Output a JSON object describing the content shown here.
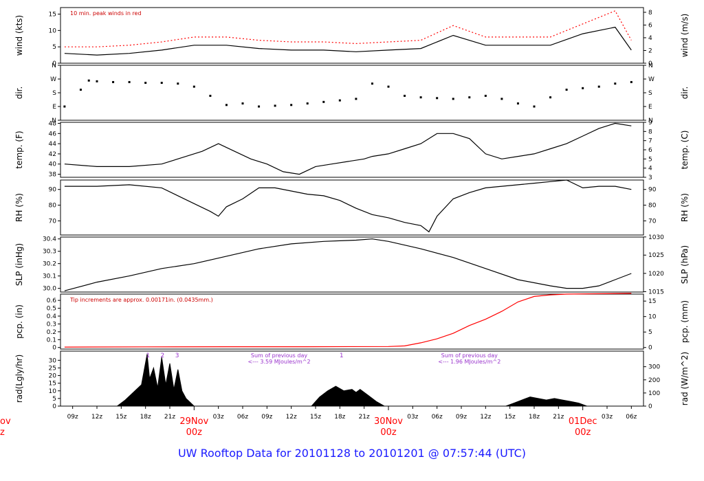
{
  "footer_title": "UW Rooftop Data for 20101128  to  20101201 @ 07:57:44  (UTC)",
  "colors": {
    "axis": "#000000",
    "series": "#000000",
    "peak": "#ff0000",
    "precip": "#ff0000",
    "note_red": "#cc0000",
    "note_purple": "#9933cc",
    "day_label": "#ff0000",
    "footer": "#1a1aff"
  },
  "chart_data": [
    {
      "type": "line",
      "id": "wind",
      "ylabel_left": "wind (kts)",
      "ylabel_right": "wind (m/s)",
      "ylim": [
        0,
        17
      ],
      "yticks_left": [
        0,
        5,
        10,
        15
      ],
      "yticks_right": [
        "0",
        "2",
        "4",
        "6",
        "8"
      ],
      "yticks_right_kts": [
        0,
        3.89,
        7.78,
        11.66,
        15.55
      ],
      "annotation": "10 min. peak winds in red",
      "series": [
        {
          "x": [
            0,
            4,
            8,
            12,
            16,
            20,
            24,
            28,
            32,
            36,
            40,
            44,
            48,
            52,
            56,
            60,
            64,
            68,
            70
          ],
          "values": [
            3,
            2.5,
            3,
            4,
            5.5,
            5.5,
            4.5,
            4,
            4,
            3.5,
            4,
            4.5,
            8.5,
            5.5,
            5.5,
            5.5,
            9,
            11,
            4
          ]
        },
        {
          "name": "10 min. peak winds",
          "x": [
            0,
            4,
            8,
            12,
            16,
            20,
            24,
            28,
            32,
            36,
            40,
            44,
            48,
            52,
            56,
            60,
            64,
            68,
            70
          ],
          "values": [
            5,
            5,
            5.5,
            6.5,
            8,
            8,
            7,
            6.5,
            6.5,
            6,
            6.5,
            7,
            11.5,
            8,
            8,
            8,
            12,
            16,
            7
          ]
        }
      ]
    },
    {
      "type": "scatter",
      "id": "dir",
      "ylabel_left": "dir.",
      "ylabel_right": "dir.",
      "ylim": [
        0,
        360
      ],
      "yticks": [
        "N",
        "E",
        "S",
        "W",
        "N"
      ],
      "ytick_values": [
        0,
        90,
        180,
        270,
        360
      ],
      "x": [
        0,
        2,
        3,
        4,
        6,
        8,
        10,
        12,
        14,
        16,
        18,
        20,
        22,
        24,
        26,
        28,
        30,
        32,
        34,
        36,
        38,
        40,
        42,
        44,
        46,
        48,
        50,
        52,
        54,
        56,
        58,
        60,
        62,
        64,
        66,
        68,
        70
      ],
      "values": [
        90,
        200,
        260,
        255,
        250,
        250,
        245,
        245,
        240,
        220,
        160,
        100,
        110,
        90,
        95,
        100,
        110,
        120,
        130,
        140,
        240,
        220,
        160,
        150,
        145,
        140,
        150,
        160,
        140,
        110,
        90,
        150,
        200,
        210,
        220,
        240,
        250
      ]
    },
    {
      "type": "line",
      "id": "temp",
      "ylabel_left": "temp. (F)",
      "ylabel_right": "temp. (C)",
      "ylim": [
        37.4,
        48.2
      ],
      "yticks_left": [
        38,
        40,
        42,
        44,
        46,
        48
      ],
      "yticks_right": [
        "3",
        "4",
        "5",
        "6",
        "7",
        "8",
        "9"
      ],
      "yticks_right_F": [
        37.4,
        39.2,
        41,
        42.8,
        44.6,
        46.4,
        48.2
      ],
      "series": [
        {
          "x": [
            0,
            4,
            8,
            12,
            15,
            17,
            19,
            21,
            23,
            25,
            27,
            29,
            31,
            33,
            35,
            37,
            38,
            40,
            42,
            44,
            46,
            48,
            50,
            52,
            54,
            56,
            58,
            60,
            62,
            64,
            66,
            68,
            70
          ],
          "values": [
            40,
            39.5,
            39.5,
            40,
            41.5,
            42.5,
            44,
            42.5,
            41,
            40,
            38.5,
            38,
            39.5,
            40,
            40.5,
            41,
            41.5,
            42,
            43,
            44,
            46,
            46,
            45,
            42,
            41,
            41.5,
            42,
            43,
            44,
            45.5,
            47,
            48,
            47.5
          ]
        }
      ]
    },
    {
      "type": "line",
      "id": "rh",
      "ylabel_left": "RH (%)",
      "ylabel_right": "RH (%)",
      "ylim": [
        61,
        96
      ],
      "yticks_left": [
        70,
        80,
        90
      ],
      "yticks_right": [
        "70",
        "80",
        "90"
      ],
      "series": [
        {
          "x": [
            0,
            4,
            8,
            12,
            14,
            16,
            18,
            19,
            20,
            22,
            24,
            26,
            28,
            30,
            32,
            34,
            36,
            38,
            40,
            42,
            44,
            45,
            46,
            48,
            50,
            52,
            54,
            56,
            58,
            60,
            62,
            64,
            66,
            68,
            70
          ],
          "values": [
            92,
            92,
            93,
            91,
            86,
            81,
            76,
            73,
            79,
            84,
            91,
            91,
            89,
            87,
            86,
            83,
            78,
            74,
            72,
            69,
            67,
            63,
            73,
            84,
            88,
            91,
            92,
            93,
            94,
            95,
            96,
            91,
            92,
            92,
            90
          ]
        }
      ]
    },
    {
      "type": "line",
      "id": "slp",
      "ylabel_left": "SLP (inHg)",
      "ylabel_right": "SLP (hPa)",
      "ylim": [
        29.97,
        30.415
      ],
      "yticks_left": [
        30.0,
        30.1,
        30.2,
        30.3,
        30.4
      ],
      "yticks_left_labels": [
        "30.0",
        "30.1",
        "30.2",
        "30.3",
        "30.4"
      ],
      "yticks_right": [
        "1015",
        "1020",
        "1025",
        "1030"
      ],
      "yticks_right_inHg": [
        29.973,
        30.121,
        30.269,
        30.416
      ],
      "series": [
        {
          "x": [
            0,
            4,
            8,
            12,
            16,
            20,
            24,
            28,
            32,
            34,
            36,
            38,
            40,
            42,
            44,
            48,
            52,
            56,
            60,
            62,
            64,
            66,
            68,
            70
          ],
          "values": [
            29.98,
            30.05,
            30.1,
            30.16,
            30.2,
            30.26,
            30.32,
            30.36,
            30.38,
            30.385,
            30.39,
            30.4,
            30.38,
            30.35,
            30.32,
            30.25,
            30.16,
            30.07,
            30.02,
            30.0,
            30.0,
            30.02,
            30.07,
            30.12
          ]
        }
      ]
    },
    {
      "type": "line",
      "id": "pcp",
      "ylabel_left": "pcp. (in)",
      "ylabel_right": "pcp. (mm)",
      "ylim": [
        -0.02,
        0.68
      ],
      "yticks_left": [
        0,
        0.1,
        0.2,
        0.3,
        0.4,
        0.5,
        0.6
      ],
      "yticks_left_labels": [
        "0",
        "0.1",
        "0.2",
        "0.3",
        "0.4",
        "0.5",
        "0.6"
      ],
      "yticks_right": [
        "0",
        "5",
        "10",
        "15"
      ],
      "yticks_right_in": [
        0,
        0.197,
        0.394,
        0.591
      ],
      "annotation": "Tip increments are approx. 0.00171in. (0.0435mm.)",
      "series": [
        {
          "name": "precip",
          "x": [
            0,
            10,
            20,
            30,
            40,
            42,
            44,
            46,
            48,
            50,
            52,
            54,
            56,
            58,
            60,
            62,
            70
          ],
          "values": [
            0.005,
            0.008,
            0.01,
            0.01,
            0.012,
            0.02,
            0.06,
            0.11,
            0.18,
            0.28,
            0.36,
            0.46,
            0.58,
            0.65,
            0.67,
            0.68,
            0.69
          ]
        }
      ]
    },
    {
      "type": "area",
      "id": "rad",
      "ylabel_left": "rad(Lgly/hr)",
      "ylabel_right": "rad (W/m^2)",
      "ylim": [
        0,
        36
      ],
      "yticks_left": [
        0,
        5,
        10,
        15,
        20,
        25,
        30
      ],
      "yticks_right": [
        "0",
        "100",
        "200",
        "300"
      ],
      "yticks_right_lgly": [
        0,
        8.6,
        17.2,
        25.8
      ],
      "annotations": [
        {
          "x": 26.5,
          "text": "Sum of previous day"
        },
        {
          "x": 26.5,
          "text": "<--- 3.59 MJoules/m^2"
        },
        {
          "x": 50,
          "text": "Sum of previous day"
        },
        {
          "x": 50,
          "text": "<--- 1.96 MJoules/m^2"
        }
      ],
      "peak_labels": [
        {
          "x": 10.3,
          "text": "1"
        },
        {
          "x": 12.1,
          "text": "2"
        },
        {
          "x": 13.9,
          "text": "3"
        },
        {
          "x": 34.2,
          "text": "1"
        }
      ],
      "series": [
        {
          "x": [
            6.5,
            7.5,
            8.5,
            9.5,
            10.2,
            10.5,
            11,
            11.5,
            12,
            12.5,
            13,
            13.5,
            14,
            14.5,
            15,
            16
          ],
          "values": [
            0,
            4,
            9,
            14,
            34,
            18,
            25,
            12,
            32,
            14,
            28,
            11,
            24,
            10,
            5,
            0
          ]
        },
        {
          "x": [
            30.5,
            31.5,
            32.5,
            33.5,
            34.5,
            35.5,
            36,
            36.5,
            37,
            37.5,
            38.5,
            39.5
          ],
          "values": [
            0,
            6,
            10,
            13,
            10,
            11,
            9,
            11,
            9,
            7,
            3,
            0
          ]
        },
        {
          "x": [
            54.5,
            55.5,
            56.5,
            57.5,
            58.5,
            59.5,
            60.5,
            61.5,
            62.5,
            63.5,
            64.5
          ],
          "values": [
            0,
            2,
            4,
            6,
            5,
            4,
            5,
            4,
            3,
            2,
            0
          ]
        }
      ]
    }
  ],
  "xaxis": {
    "hour_labels": [
      "09z",
      "12z",
      "15z",
      "18z",
      "21z",
      "03z",
      "06z",
      "09z",
      "12z",
      "15z",
      "18z",
      "21z",
      "03z",
      "06z",
      "09z",
      "12z",
      "15z",
      "18z",
      "21z",
      "03z",
      "06z"
    ],
    "hour_x": [
      1,
      4,
      7,
      10,
      13,
      19,
      22,
      25,
      28,
      31,
      34,
      37,
      43,
      46,
      49,
      52,
      55,
      58,
      61,
      67,
      70
    ],
    "day_labels": [
      {
        "x": 16,
        "date": "29Nov",
        "hour": "00z"
      },
      {
        "x": 40,
        "date": "30Nov",
        "hour": "00z"
      },
      {
        "x": 64,
        "date": "01Dec",
        "hour": "00z"
      }
    ],
    "edge_day_label": {
      "date": "ov",
      "hour": "z"
    }
  }
}
